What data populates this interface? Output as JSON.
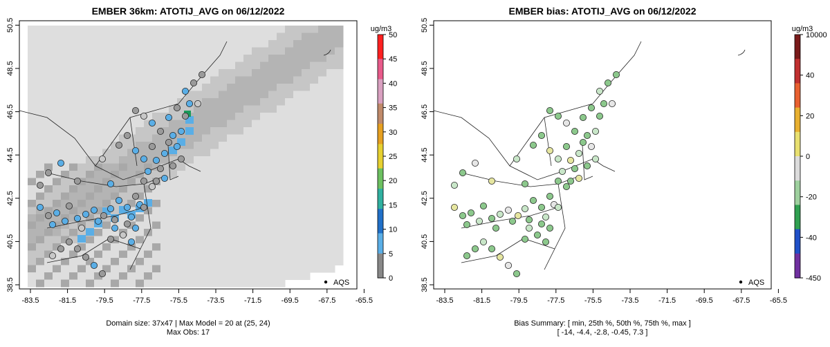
{
  "panels": [
    {
      "id": "model",
      "title": "EMBER 36km: ATOTIJ_AVG on 06/12/2022",
      "legend_unit": "ug/m3",
      "legend_ticks": [
        "0",
        "5",
        "10",
        "15",
        "20",
        "25",
        "30",
        "35",
        "40",
        "45",
        "50"
      ],
      "network_label": "AQS",
      "footer_lines": [
        "Domain size: 37x47 | Max Model = 20 at (25, 24)",
        "Max Obs: 17"
      ]
    },
    {
      "id": "bias",
      "title": "EMBER bias: ATOTIJ_AVG on 06/12/2022",
      "legend_unit": "ug/m3",
      "legend_ticks": [
        "10000",
        "40",
        "20",
        "0",
        "-20",
        "-40",
        "-450"
      ],
      "network_label": "AQS",
      "footer_lines": [
        "Bias Summary: [ min, 25th %, 50th %, 75th %, max ]",
        "[ -14,   -4.4,   -2.8,   -0.45,   7.3 ]"
      ]
    }
  ],
  "axes": {
    "x_ticks": [
      "-83.5",
      "-81.5",
      "-79.5",
      "-77.5",
      "-75.5",
      "-73.5",
      "-71.5",
      "-69.5",
      "-67.5",
      "-65.5"
    ],
    "y_ticks": [
      "38.5",
      "40.5",
      "42.5",
      "44.5",
      "46.5",
      "48.5",
      "50.5"
    ],
    "xlim": [
      -84.5,
      -65
    ],
    "ylim": [
      38.5,
      50.5
    ]
  },
  "colors": {
    "grid_fill": "#dcdcdc",
    "model_obs_high": "#5aaee6",
    "model_obs_mid": "#9a9a9a",
    "model_obs_low": "#c8c8c8",
    "bias_green": "#8cc88c",
    "bias_lightgreen": "#c8e6c8",
    "bias_white": "#e6e6e6",
    "bias_yellow": "#e6e6a0",
    "max_marker": "#1a9a5a"
  },
  "map_data": {
    "max_model_cell": {
      "lon": -74.6,
      "lat": 46.3
    },
    "site_sample_model": [
      {
        "lon": -74.5,
        "lat": 46.3,
        "level": "high"
      },
      {
        "lon": -76.4,
        "lat": 44.2,
        "level": "high"
      },
      {
        "lon": -80.0,
        "lat": 41.8,
        "level": "high"
      },
      {
        "lon": -82.8,
        "lat": 41.6,
        "level": "high"
      },
      {
        "lon": -77.0,
        "lat": 43.1,
        "level": "mid"
      },
      {
        "lon": -75.3,
        "lat": 45.8,
        "level": "mid"
      }
    ]
  }
}
